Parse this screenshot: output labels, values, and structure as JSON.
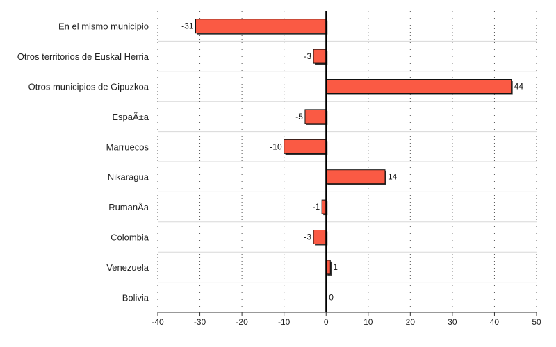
{
  "chart_data": {
    "type": "bar",
    "orientation": "horizontal",
    "title": "",
    "xlabel": "",
    "ylabel": "",
    "xlim": [
      -40,
      50
    ],
    "xticks": [
      -40,
      -30,
      -20,
      -10,
      0,
      10,
      20,
      30,
      40,
      50
    ],
    "grid": true,
    "bar_color": "#fa5a44",
    "bar_edge_color": "#111111",
    "categories": [
      "En el mismo municipio",
      "Otros territorios de Euskal Herria",
      "Otros municipios de Gipuzkoa",
      "EspaÃ±a",
      "Marruecos",
      "Nikaragua",
      "RumanÃ­a",
      "Colombia",
      "Venezuela",
      "Bolivia"
    ],
    "values": [
      -31,
      -3,
      44,
      -5,
      -10,
      14,
      -1,
      -3,
      1,
      0
    ]
  }
}
